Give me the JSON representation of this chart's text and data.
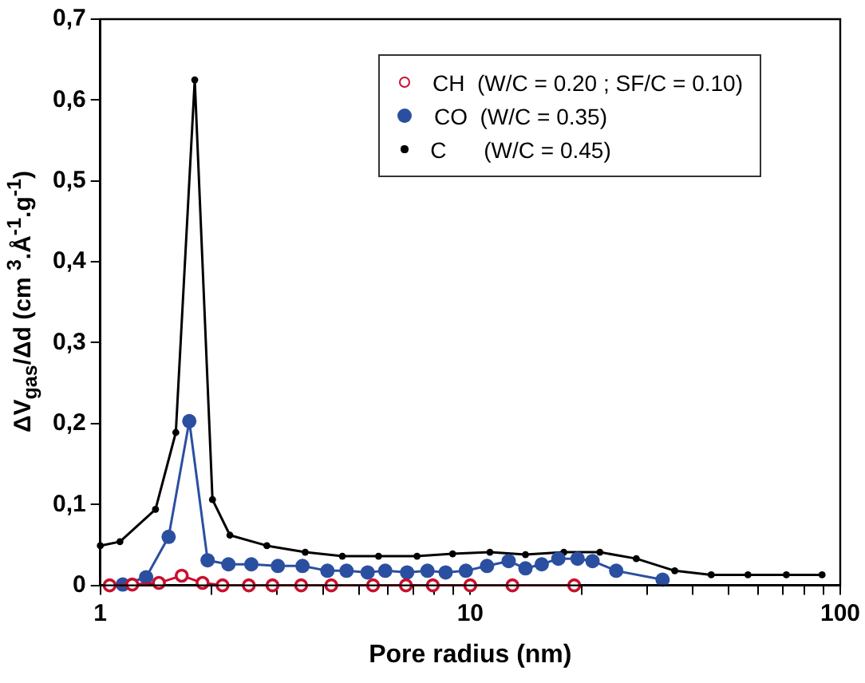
{
  "chart_data": {
    "type": "line",
    "xlabel": "Pore radius (nm)",
    "ylabel": "ΔV$_{gas}$/Δd (cm $^{3}$.Å$^{-1}$.g$^{-1}$)",
    "log": "x",
    "xlim": [
      1,
      100
    ],
    "xticks": [
      1,
      {
        "value": 2,
        "label": null
      },
      {
        "value": 3,
        "label": null
      },
      {
        "value": 4,
        "label": null
      },
      {
        "value": 5,
        "label": null
      },
      {
        "value": 6,
        "label": null
      },
      {
        "value": 7,
        "label": null
      },
      {
        "value": 8,
        "label": null
      },
      {
        "value": 9,
        "label": null
      },
      10,
      {
        "value": 20,
        "label": null
      },
      {
        "value": 30,
        "label": null
      },
      {
        "value": 40,
        "label": null
      },
      {
        "value": 50,
        "label": null
      },
      {
        "value": 60,
        "label": null
      },
      {
        "value": 70,
        "label": null
      },
      {
        "value": 80,
        "label": null
      },
      {
        "value": 90,
        "label": null
      },
      100
    ],
    "ylim": [
      0,
      0.7
    ],
    "yticks": [
      {
        "value": 0,
        "label": "0"
      },
      {
        "value": 0.1,
        "label": "0,1"
      },
      {
        "value": 0.2,
        "label": "0,2"
      },
      {
        "value": 0.3,
        "label": "0,3"
      },
      {
        "value": 0.4,
        "label": "0,4"
      },
      {
        "value": 0.5,
        "label": "0,5"
      },
      {
        "value": 0.6,
        "label": "0,6"
      },
      {
        "value": 0.7,
        "label": "0,7"
      }
    ],
    "grid": false,
    "legend": "top right",
    "marker": "circle",
    "line_style": "solid",
    "series": [
      {
        "name": "CH  (W/C = 0.20 ; SF/C = 0.10)",
        "color": "#c8102e",
        "x": [
          1.06,
          1.22,
          1.44,
          1.66,
          1.89,
          2.14,
          2.52,
          2.92,
          3.49,
          4.21,
          5.46,
          6.7,
          7.92,
          10.0,
          13.0,
          19.1
        ],
        "values": [
          0,
          0.001,
          0.003,
          0.012,
          0.003,
          0,
          0,
          0,
          0,
          0,
          0,
          0,
          0,
          0,
          0,
          0
        ]
      },
      {
        "name": "CO  (W/C = 0.35)",
        "color": "#2b4fa0",
        "x": [
          1.15,
          1.33,
          1.53,
          1.74,
          1.95,
          2.22,
          2.56,
          3.02,
          3.52,
          4.11,
          4.63,
          5.28,
          5.89,
          6.75,
          7.66,
          8.58,
          9.73,
          11.1,
          12.7,
          14.1,
          15.6,
          17.3,
          19.5,
          21.4,
          24.8,
          33.1
        ],
        "values": [
          0.001,
          0.01,
          0.06,
          0.203,
          0.031,
          0.026,
          0.026,
          0.024,
          0.024,
          0.018,
          0.018,
          0.016,
          0.018,
          0.016,
          0.018,
          0.016,
          0.018,
          0.024,
          0.03,
          0.021,
          0.026,
          0.033,
          0.033,
          0.03,
          0.018,
          0.007
        ]
      },
      {
        "name": "C      (W/C = 0.45)",
        "color": "#000000",
        "x": [
          1.0,
          1.13,
          1.41,
          1.6,
          1.8,
          2.01,
          2.24,
          2.82,
          3.58,
          4.51,
          5.65,
          7.18,
          8.96,
          11.3,
          14.1,
          17.9,
          22.4,
          28.1,
          35.7,
          44.8,
          56.3,
          71.5,
          89.3
        ],
        "values": [
          0.049,
          0.054,
          0.094,
          0.189,
          0.625,
          0.106,
          0.062,
          0.049,
          0.041,
          0.036,
          0.036,
          0.036,
          0.039,
          0.041,
          0.038,
          0.041,
          0.041,
          0.033,
          0.018,
          0.013,
          0.013,
          0.013,
          0.013
        ]
      }
    ]
  }
}
